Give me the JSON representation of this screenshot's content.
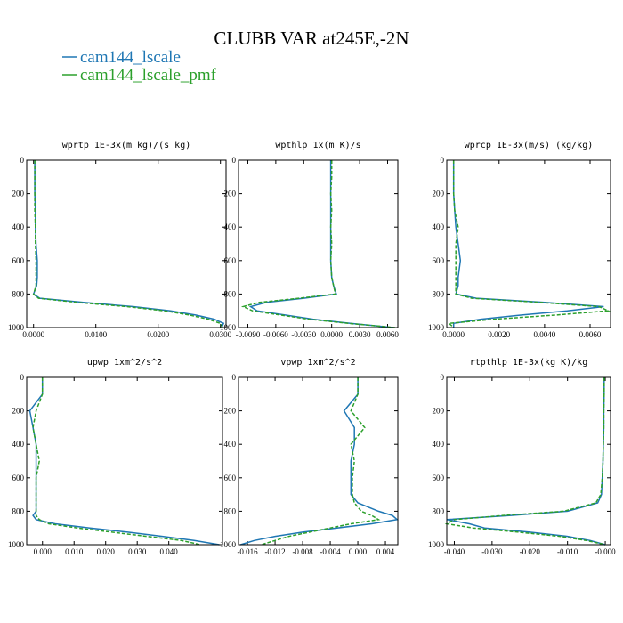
{
  "title": "CLUBB VAR at245E,-2N",
  "legend": [
    {
      "name": "cam144_lscale",
      "color": "#1f77b4"
    },
    {
      "name": "cam144_lscale_pmf",
      "color": "#2ca02c"
    }
  ],
  "chart_data": [
    {
      "type": "line",
      "title": "wprtp  1E-3x(m kg)/(s kg)",
      "xlim": [
        -0.0011,
        0.0309
      ],
      "ylim": [
        0,
        1000
      ],
      "y_inverted": true,
      "xticks": [
        {
          "value": 0,
          "label": "0.0000"
        },
        {
          "value": 0.01,
          "label": "0.0100"
        },
        {
          "value": 0.02,
          "label": "0.0200"
        },
        {
          "value": 0.03,
          "label": "0.0300"
        }
      ],
      "yticks": [
        0,
        200,
        400,
        600,
        800,
        1000
      ],
      "y": [
        0,
        100,
        200,
        300,
        400,
        500,
        600,
        700,
        750,
        800,
        825,
        850,
        875,
        900,
        925,
        950,
        975,
        1000
      ],
      "series": [
        {
          "values": [
            0.0002,
            0.0002,
            0.0002,
            0.0003,
            0.0003,
            0.0004,
            0.0006,
            0.0006,
            0.0005,
            0,
            0.001,
            0.008,
            0.016,
            0.022,
            0.026,
            0.029,
            0.0305,
            0.0302
          ]
        },
        {
          "values": [
            0.0002,
            0.0002,
            0.0002,
            0.0002,
            0.0003,
            0.0003,
            0.0004,
            0.0004,
            0.0004,
            0,
            0.0008,
            0.007,
            0.015,
            0.021,
            0.025,
            0.028,
            0.03,
            0.0303
          ]
        }
      ]
    },
    {
      "type": "line",
      "title": "wpthlp  1x(m K)/s",
      "xlim": [
        -0.01,
        0.0071
      ],
      "ylim": [
        0,
        1000
      ],
      "y_inverted": true,
      "xticks": [
        {
          "value": -0.009,
          "label": "-0.0090"
        },
        {
          "value": -0.006,
          "label": "-0.0060"
        },
        {
          "value": -0.003,
          "label": "-0.0030"
        },
        {
          "value": 0,
          "label": "0.0000"
        },
        {
          "value": 0.003,
          "label": "0.0030"
        },
        {
          "value": 0.006,
          "label": "0.0060"
        }
      ],
      "yticks": [
        0,
        200,
        400,
        600,
        800,
        1000
      ],
      "y": [
        0,
        100,
        200,
        300,
        400,
        500,
        600,
        700,
        750,
        800,
        825,
        850,
        875,
        900,
        925,
        950,
        975,
        1000
      ],
      "series": [
        {
          "values": [
            -0.0001,
            -0.0001,
            -0.0001,
            -0.0001,
            -0.0001,
            -0.0001,
            -0.0001,
            0,
            0.0002,
            0.0005,
            -0.003,
            -0.007,
            -0.0087,
            -0.008,
            -0.005,
            -0.002,
            0.002,
            0.0066
          ]
        },
        {
          "values": [
            0,
            0,
            -0.0001,
            0,
            -0.0001,
            0,
            -0.0001,
            0,
            0.0002,
            0.0004,
            -0.0035,
            -0.0078,
            -0.0095,
            -0.0085,
            -0.0055,
            -0.0025,
            0.0018,
            0.0068
          ]
        }
      ]
    },
    {
      "type": "line",
      "title": "wprcp  1E-3x(m/s) (kg/kg)",
      "xlim": [
        -0.0003,
        0.0069
      ],
      "ylim": [
        0,
        1000
      ],
      "y_inverted": true,
      "xticks": [
        {
          "value": 0,
          "label": "0.0000"
        },
        {
          "value": 0.002,
          "label": "0.0020"
        },
        {
          "value": 0.004,
          "label": "0.0040"
        },
        {
          "value": 0.006,
          "label": "0.0060"
        }
      ],
      "yticks": [
        0,
        200,
        400,
        600,
        800,
        1000
      ],
      "y": [
        0,
        100,
        200,
        300,
        400,
        500,
        600,
        700,
        750,
        800,
        825,
        850,
        875,
        900,
        925,
        950,
        975,
        1000
      ],
      "series": [
        {
          "values": [
            0,
            0,
            0,
            5e-05,
            0.0001,
            0.0002,
            0.0003,
            0.0002,
            0.0002,
            0.0001,
            0.001,
            0.004,
            0.0066,
            0.005,
            0.003,
            0.0012,
            0,
            0
          ]
        },
        {
          "values": [
            0,
            0,
            0,
            5e-05,
            0.0002,
            0.0001,
            0.0001,
            0.0001,
            0.0001,
            0.0001,
            0.0008,
            0.0038,
            0.0064,
            0.0068,
            0.0045,
            0.0018,
            -0.0002,
            0
          ]
        }
      ]
    },
    {
      "type": "line",
      "title": "upwp  1xm^2/s^2",
      "xlim": [
        -0.005,
        0.057
      ],
      "ylim": [
        0,
        1000
      ],
      "y_inverted": true,
      "xticks": [
        {
          "value": 0,
          "label": "0.000"
        },
        {
          "value": 0.01,
          "label": "0.010"
        },
        {
          "value": 0.02,
          "label": "0.020"
        },
        {
          "value": 0.03,
          "label": "0.030"
        },
        {
          "value": 0.04,
          "label": "0.040"
        }
      ],
      "yticks": [
        0,
        200,
        400,
        600,
        800,
        1000
      ],
      "y": [
        0,
        100,
        200,
        300,
        400,
        500,
        600,
        700,
        750,
        800,
        825,
        850,
        875,
        900,
        925,
        950,
        975,
        1000
      ],
      "series": [
        {
          "values": [
            0,
            0,
            -0.004,
            -0.003,
            -0.002,
            -0.002,
            -0.002,
            -0.002,
            -0.002,
            -0.002,
            -0.003,
            -0.002,
            0.004,
            0.015,
            0.027,
            0.038,
            0.048,
            0.056
          ]
        },
        {
          "values": [
            0,
            0,
            -0.002,
            -0.003,
            -0.002,
            -0.001,
            -0.002,
            -0.002,
            -0.002,
            -0.002,
            -0.002,
            -0.001,
            0.002,
            0.011,
            0.022,
            0.033,
            0.044,
            0.05
          ]
        }
      ]
    },
    {
      "type": "line",
      "title": "vpwp  1xm^2/s^2",
      "xlim": [
        -0.0173,
        0.0058
      ],
      "ylim": [
        0,
        1000
      ],
      "y_inverted": true,
      "xticks": [
        {
          "value": -0.016,
          "label": "-0.016"
        },
        {
          "value": -0.012,
          "label": "-0.012"
        },
        {
          "value": -0.008,
          "label": "-0.008"
        },
        {
          "value": -0.004,
          "label": "-0.004"
        },
        {
          "value": 0,
          "label": "0.000"
        },
        {
          "value": 0.004,
          "label": "0.004"
        }
      ],
      "yticks": [
        0,
        200,
        400,
        600,
        800,
        1000
      ],
      "y": [
        0,
        100,
        200,
        300,
        400,
        500,
        600,
        700,
        750,
        800,
        825,
        850,
        875,
        900,
        925,
        950,
        975,
        1000
      ],
      "series": [
        {
          "values": [
            0,
            0,
            -0.002,
            -0.0005,
            -0.0005,
            -0.001,
            -0.001,
            -0.001,
            0,
            0.003,
            0.005,
            0.0057,
            0.002,
            -0.003,
            -0.008,
            -0.012,
            -0.015,
            -0.017
          ]
        },
        {
          "values": [
            0,
            0,
            -0.001,
            0.001,
            -0.001,
            -0.0005,
            -0.0008,
            -0.0008,
            -0.0005,
            0.0005,
            0.002,
            0.003,
            -0.001,
            -0.004,
            -0.007,
            -0.01,
            -0.012,
            -0.014
          ]
        }
      ]
    },
    {
      "type": "line",
      "title": "rtpthlp  1E-3x(kg K)/kg",
      "xlim": [
        -0.042,
        0.0014
      ],
      "ylim": [
        0,
        1000
      ],
      "y_inverted": true,
      "xticks": [
        {
          "value": -0.04,
          "label": "-0.040"
        },
        {
          "value": -0.03,
          "label": "-0.030"
        },
        {
          "value": -0.02,
          "label": "-0.020"
        },
        {
          "value": -0.01,
          "label": "-0.010"
        },
        {
          "value": 0,
          "label": "-0.000"
        }
      ],
      "yticks": [
        0,
        200,
        400,
        600,
        800,
        1000
      ],
      "y": [
        0,
        100,
        200,
        300,
        400,
        500,
        600,
        700,
        750,
        800,
        825,
        850,
        875,
        900,
        925,
        950,
        975,
        1000
      ],
      "series": [
        {
          "values": [
            -0.0003,
            -0.0003,
            -0.0004,
            -0.0004,
            -0.0005,
            -0.0006,
            -0.0008,
            -0.001,
            -0.002,
            -0.01,
            -0.025,
            -0.042,
            -0.036,
            -0.032,
            -0.02,
            -0.01,
            -0.004,
            0
          ]
        },
        {
          "values": [
            -0.0003,
            -0.0003,
            -0.0004,
            -0.0004,
            -0.0005,
            -0.0006,
            -0.0008,
            -0.0012,
            -0.0025,
            -0.011,
            -0.027,
            -0.04,
            -0.042,
            -0.035,
            -0.023,
            -0.012,
            -0.005,
            0
          ]
        }
      ]
    }
  ]
}
